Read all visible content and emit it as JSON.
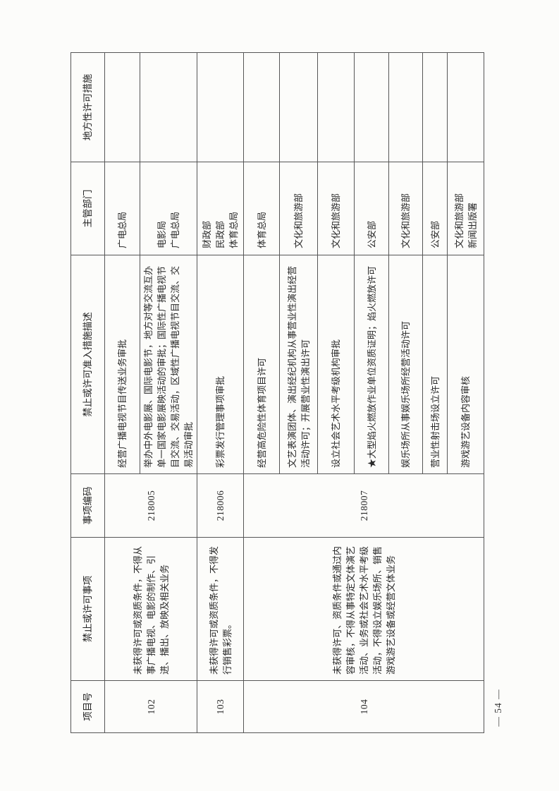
{
  "page": {
    "number_label": "— 54 —"
  },
  "table": {
    "headers": {
      "item_no": "项目号",
      "item": "禁止或许可事项",
      "code": "事项编码",
      "measure_desc": "禁止或许可准入措施描述",
      "department": "主管部门",
      "local_measures": "地方性许可措施"
    },
    "groups": [
      {
        "item_no": "102",
        "item": "未获得许可或资质条件，不得从事广播电视、电影的制作、引进、播出、放映及相关业务",
        "code": "218005",
        "rows": [
          {
            "measure": "经营广播电视节目传送业务审批",
            "department": "广电总局",
            "local": ""
          },
          {
            "measure": "举办中外电影展、国际电影节，地方对等交流互办单一国家电影展映活动的审批；国际性广播电视节目交流、交易活动，区域性广播电视节目交流、交易活动审批",
            "department": "电影局\n广电总局",
            "local": ""
          }
        ]
      },
      {
        "item_no": "103",
        "item": "未获得许可或资质条件，不得发行销售彩票。",
        "code": "218006",
        "rows": [
          {
            "measure": "彩票发行管理事项审批",
            "department": "财政部\n民政部\n体育总局",
            "local": ""
          }
        ]
      },
      {
        "item_no": "104",
        "item": "未获得许可、资质条件或通过内容审核，不得从事特定文体演艺活动、业务或社会艺术水平考级活动，不得设立娱乐场所、销售游戏游艺设备或经营文体业务",
        "code": "218007",
        "rows": [
          {
            "measure": "经营高危险性体育项目许可",
            "department": "体育总局",
            "local": ""
          },
          {
            "measure": "文艺表演团体、演出经纪机构从事营业性演出经营活动许可；开展营业性演出许可",
            "department": "文化和旅游部",
            "local": ""
          },
          {
            "measure": "设立社会艺术水平考级机构审批",
            "department": "文化和旅游部",
            "local": ""
          },
          {
            "measure": "★大型焰火燃放作业单位资质证明；焰火燃放许可",
            "department": "公安部",
            "local": ""
          },
          {
            "measure": "娱乐场所从事娱乐场所经营活动许可",
            "department": "文化和旅游部",
            "local": ""
          },
          {
            "measure": "营业性射击场设立许可",
            "department": "公安部",
            "local": ""
          },
          {
            "measure": "游戏游艺设备内容审核",
            "department": "文化和旅游部\n新闻出版署",
            "local": ""
          }
        ]
      }
    ]
  }
}
